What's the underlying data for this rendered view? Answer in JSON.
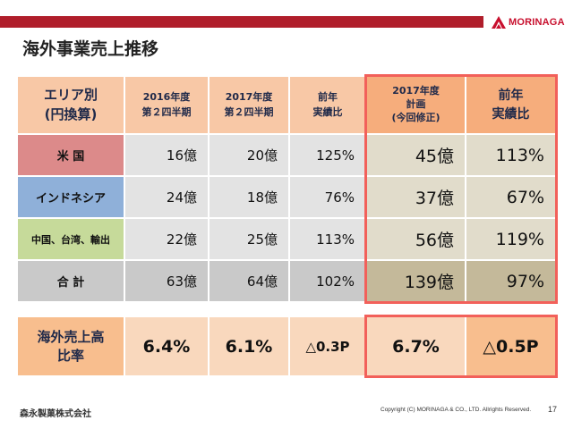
{
  "header": {
    "logo_text": "MORINAGA",
    "brand_color": "#b01e2b"
  },
  "page_title": "海外事業売上推移",
  "table": {
    "columns": {
      "area_line1": "エリア別",
      "area_line2": "(円換算)",
      "c1_line1": "2016年度",
      "c1_line2": "第２四半期",
      "c2_line1": "2017年度",
      "c2_line2": "第２四半期",
      "c3_line1": "前年",
      "c3_line2": "実績比",
      "c4_line1": "2017年度",
      "c4_line2": "計画",
      "c4_line3": "(今回修正)",
      "c5_line1": "前年",
      "c5_line2": "実績比"
    },
    "rows": [
      {
        "label": "米 国",
        "v2016": "16億",
        "v2017": "20億",
        "yoy": "125%",
        "plan": "45億",
        "plan_yoy": "113%"
      },
      {
        "label": "インドネシア",
        "v2016": "24億",
        "v2017": "18億",
        "yoy": "76%",
        "plan": "37億",
        "plan_yoy": "67%"
      },
      {
        "label": "中国、台湾、輸出",
        "v2016": "22億",
        "v2017": "25億",
        "yoy": "113%",
        "plan": "56億",
        "plan_yoy": "119%"
      }
    ],
    "total": {
      "label": "合 計",
      "v2016": "63億",
      "v2017": "64億",
      "yoy": "102%",
      "plan": "139億",
      "plan_yoy": "97%"
    },
    "row_colors": [
      "#dc8a8a",
      "#8fb0d9",
      "#c6da9a",
      "#c9c9c9"
    ]
  },
  "ratio": {
    "label_line1": "海外売上高",
    "label_line2": "比率",
    "v2016": "6.4%",
    "v2017": "6.1%",
    "yoy": "△0.3P",
    "plan": "6.7%",
    "plan_yoy": "△0.5P"
  },
  "footer": {
    "company": "森永製菓株式会社",
    "copyright": "Copyright (C) MORINAGA & CO., LTD. Allrights Reserved.",
    "page_number": "17"
  }
}
